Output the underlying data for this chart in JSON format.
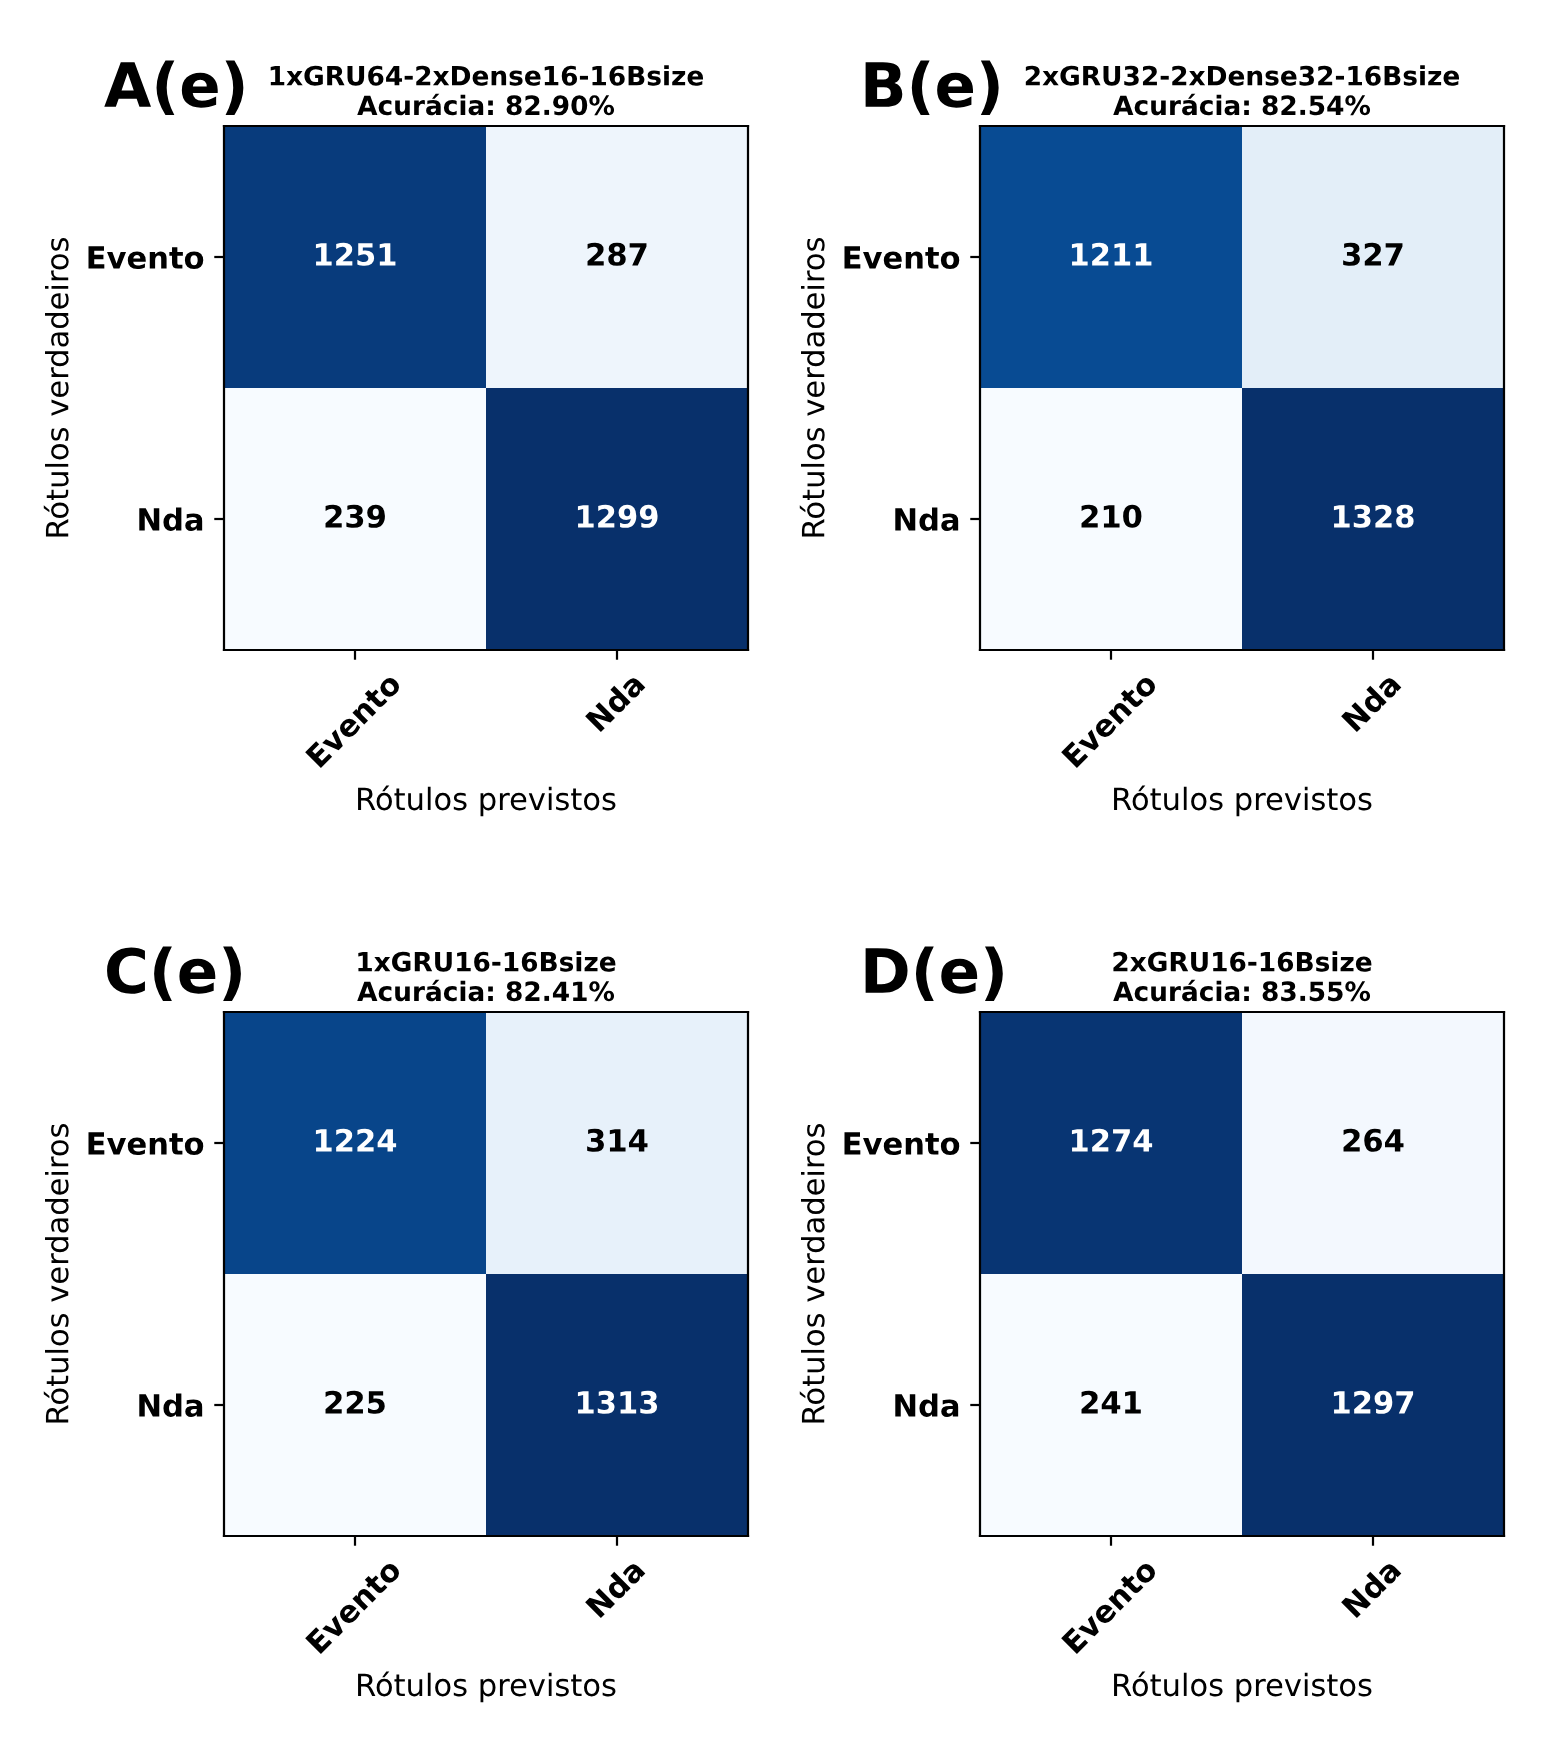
{
  "chart_data": [
    {
      "type": "heatmap",
      "title": "1xGRU64-2xDense16-16Bsize\nAcurácia: 82.90%",
      "xlabel": "Rótulos previstos",
      "ylabel": "Rótulos verdadeiros",
      "categories": [
        "Evento",
        "Nda"
      ],
      "y_categories": [
        "Evento",
        "Nda"
      ],
      "cells": [
        [
          1251,
          287
        ],
        [
          239,
          1299
        ]
      ],
      "data_labels": true,
      "annotations": [
        "A(e)"
      ]
    },
    {
      "type": "heatmap",
      "title": "2xGRU32-2xDense32-16Bsize\nAcurácia: 82.54%",
      "xlabel": "Rótulos previstos",
      "ylabel": "Rótulos verdadeiros",
      "categories": [
        "Evento",
        "Nda"
      ],
      "y_categories": [
        "Evento",
        "Nda"
      ],
      "cells": [
        [
          1211,
          327
        ],
        [
          210,
          1328
        ]
      ],
      "data_labels": true,
      "annotations": [
        "B(e)"
      ]
    },
    {
      "type": "heatmap",
      "title": "1xGRU16-16Bsize\nAcurácia: 82.41%",
      "xlabel": "Rótulos previstos",
      "ylabel": "Rótulos verdadeiros",
      "categories": [
        "Evento",
        "Nda"
      ],
      "y_categories": [
        "Evento",
        "Nda"
      ],
      "cells": [
        [
          1224,
          314
        ],
        [
          225,
          1313
        ]
      ],
      "data_labels": true,
      "annotations": [
        "C(e)"
      ]
    },
    {
      "type": "heatmap",
      "title": "2xGRU16-16Bsize\nAcurácia: 83.55%",
      "xlabel": "Rótulos previstos",
      "ylabel": "Rótulos verdadeiros",
      "categories": [
        "Evento",
        "Nda"
      ],
      "y_categories": [
        "Evento",
        "Nda"
      ],
      "cells": [
        [
          1274,
          264
        ],
        [
          241,
          1297
        ]
      ],
      "data_labels": true,
      "annotations": [
        "D(e)"
      ]
    }
  ]
}
